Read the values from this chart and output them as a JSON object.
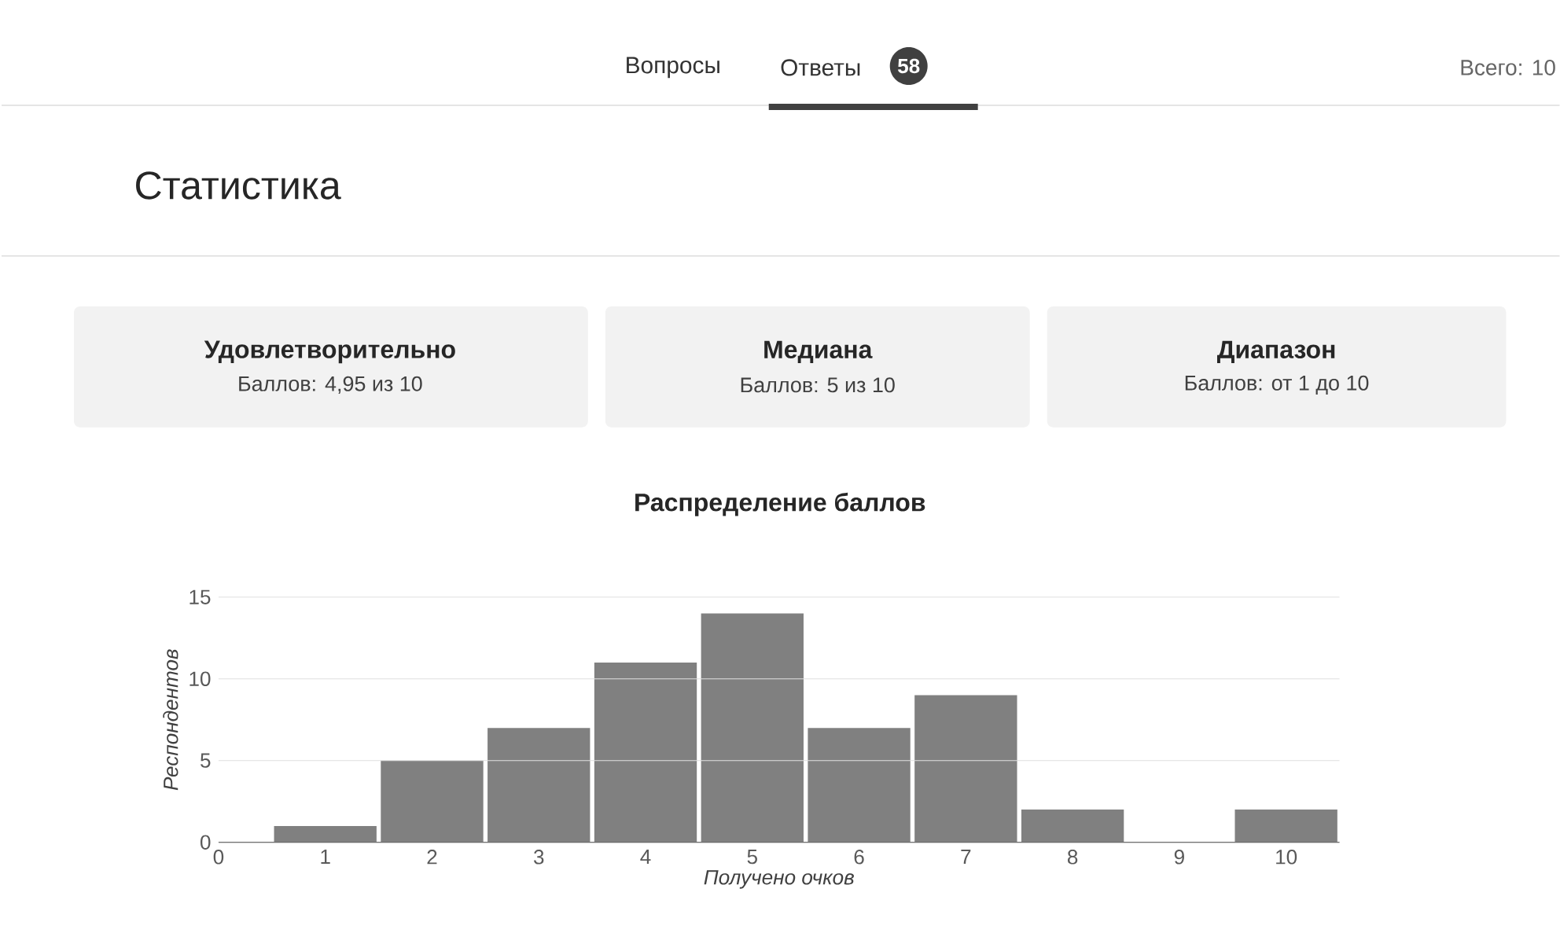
{
  "chart_data": {
    "type": "bar",
    "title": "Распределение баллов",
    "xlabel": "Получено очков",
    "ylabel": "Респондентов",
    "x": [
      1,
      2,
      3,
      4,
      5,
      6,
      7,
      8,
      9,
      10
    ],
    "values": [
      1,
      5,
      7,
      11,
      14,
      7,
      9,
      2,
      0,
      2
    ],
    "color": "#808080",
    "xlim": [
      0,
      10.5
    ],
    "xticks": [
      0,
      1,
      2,
      3,
      4,
      5,
      6,
      7,
      8,
      9,
      10
    ],
    "ylim": [
      0,
      15
    ],
    "yticks": [
      0,
      5,
      10,
      15
    ],
    "grid": "y",
    "annotations": [
      "Вопросы",
      "Ответы",
      "58",
      "Всего: 10",
      "Статистика",
      "Удовлетворительно",
      "Баллов: 4,95 из 10",
      "Медиана",
      "Баллов: 5 из 10",
      "Диапазон",
      "Баллов: от 1 до 10"
    ]
  }
}
